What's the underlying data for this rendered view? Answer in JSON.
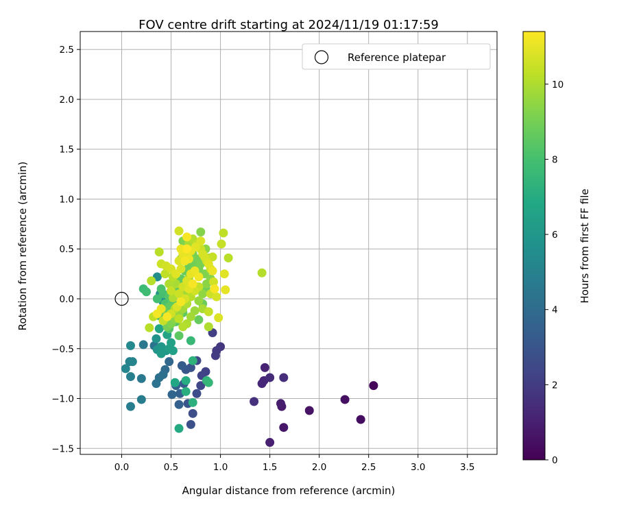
{
  "chart_data": {
    "type": "scatter",
    "title": "FOV centre drift starting at 2024/11/19 01:17:59",
    "xlabel": "Angular distance from reference (arcmin)",
    "ylabel": "Rotation from reference (arcmin)",
    "colorbar_label": "Hours from first FF file",
    "xlim": [
      -0.42,
      3.8
    ],
    "ylim": [
      -1.56,
      2.68
    ],
    "x_ticks": [
      0.0,
      0.5,
      1.0,
      1.5,
      2.0,
      2.5,
      3.0,
      3.5
    ],
    "x_tick_labels": [
      "0.0",
      "0.5",
      "1.0",
      "1.5",
      "2.0",
      "2.5",
      "3.0",
      "3.5"
    ],
    "y_ticks": [
      -1.5,
      -1.0,
      -0.5,
      0.0,
      0.5,
      1.0,
      1.5,
      2.0,
      2.5
    ],
    "y_tick_labels": [
      "−1.5",
      "−1.0",
      "−0.5",
      "0.0",
      "0.5",
      "1.0",
      "1.5",
      "2.0",
      "2.5"
    ],
    "colorbar_range": [
      0,
      11.4
    ],
    "colorbar_ticks": [
      0,
      2,
      4,
      6,
      8,
      10
    ],
    "colorbar_tick_labels": [
      "0",
      "2",
      "4",
      "6",
      "8",
      "10"
    ],
    "colormap": "viridis",
    "grid": true,
    "legend": {
      "position": "top-right",
      "entries": [
        "Reference platepar"
      ]
    },
    "reference_point": {
      "x": 0.0,
      "y": 0.0
    },
    "points": [
      [
        2.55,
        -0.87,
        0.2
      ],
      [
        2.42,
        -1.21,
        0.4
      ],
      [
        2.26,
        -1.01,
        0.5
      ],
      [
        1.9,
        -1.12,
        0.6
      ],
      [
        1.64,
        -1.29,
        0.7
      ],
      [
        1.62,
        -1.08,
        0.8
      ],
      [
        1.61,
        -1.05,
        0.9
      ],
      [
        1.5,
        -1.44,
        1.0
      ],
      [
        1.45,
        -0.69,
        1.1
      ],
      [
        1.44,
        -0.82,
        1.2
      ],
      [
        1.42,
        -0.85,
        1.3
      ],
      [
        1.5,
        -0.79,
        1.4
      ],
      [
        1.64,
        -0.79,
        1.5
      ],
      [
        1.34,
        -1.03,
        1.6
      ],
      [
        1.0,
        -0.48,
        1.8
      ],
      [
        0.96,
        -0.52,
        1.9
      ],
      [
        0.95,
        -0.57,
        2.0
      ],
      [
        0.92,
        -0.34,
        2.1
      ],
      [
        0.85,
        -0.73,
        2.2
      ],
      [
        0.81,
        -0.77,
        2.3
      ],
      [
        0.8,
        -0.87,
        2.4
      ],
      [
        0.76,
        -0.62,
        2.5
      ],
      [
        0.76,
        -0.95,
        2.6
      ],
      [
        0.72,
        -1.15,
        2.7
      ],
      [
        0.7,
        -1.26,
        2.8
      ],
      [
        0.7,
        -0.69,
        2.9
      ],
      [
        0.67,
        -1.05,
        3.0
      ],
      [
        0.65,
        -0.71,
        3.1
      ],
      [
        0.63,
        -0.85,
        3.2
      ],
      [
        0.61,
        -0.67,
        3.3
      ],
      [
        0.59,
        -0.95,
        3.4
      ],
      [
        0.58,
        -1.06,
        3.5
      ],
      [
        0.55,
        -0.87,
        3.6
      ],
      [
        0.51,
        -0.96,
        3.7
      ],
      [
        0.48,
        -0.63,
        3.8
      ],
      [
        0.44,
        -0.71,
        3.9
      ],
      [
        0.42,
        -0.76,
        4.1
      ],
      [
        0.38,
        -0.79,
        4.2
      ],
      [
        0.35,
        -0.85,
        4.3
      ],
      [
        0.33,
        -0.47,
        4.4
      ],
      [
        0.22,
        -0.46,
        4.5
      ],
      [
        0.2,
        -0.8,
        4.6
      ],
      [
        0.2,
        -1.01,
        4.7
      ],
      [
        0.09,
        -1.08,
        4.8
      ],
      [
        0.09,
        -0.78,
        4.9
      ],
      [
        0.08,
        -0.63,
        5.0
      ],
      [
        0.11,
        -0.63,
        5.1
      ],
      [
        0.04,
        -0.7,
        5.2
      ],
      [
        0.09,
        -0.47,
        5.3
      ],
      [
        0.36,
        0.22,
        5.5
      ],
      [
        0.39,
        0.05,
        5.6
      ],
      [
        0.42,
        -0.03,
        5.7
      ],
      [
        0.35,
        -0.4,
        5.8
      ],
      [
        0.36,
        -0.51,
        5.9
      ],
      [
        0.4,
        -0.48,
        6.0
      ],
      [
        0.45,
        -0.52,
        6.1
      ],
      [
        0.4,
        -0.55,
        6.2
      ],
      [
        0.48,
        -0.5,
        6.3
      ],
      [
        0.52,
        -0.52,
        6.4
      ],
      [
        0.5,
        -0.44,
        6.5
      ],
      [
        0.46,
        -0.36,
        6.6
      ],
      [
        0.38,
        -0.3,
        6.7
      ],
      [
        0.54,
        -0.84,
        6.8
      ],
      [
        0.58,
        -1.3,
        6.9
      ],
      [
        0.65,
        -0.82,
        7.0
      ],
      [
        0.65,
        -0.93,
        7.1
      ],
      [
        0.72,
        -1.04,
        7.2
      ],
      [
        0.72,
        -0.62,
        7.3
      ],
      [
        0.86,
        -0.82,
        7.4
      ],
      [
        0.88,
        -0.84,
        7.5
      ],
      [
        0.7,
        -0.42,
        7.6
      ],
      [
        0.22,
        0.1,
        7.7
      ],
      [
        0.25,
        0.07,
        7.8
      ],
      [
        0.36,
        0.0,
        7.9
      ],
      [
        0.42,
        0.05,
        8.0
      ],
      [
        0.45,
        -0.1,
        8.1
      ],
      [
        0.38,
        -0.17,
        8.2
      ],
      [
        0.48,
        -0.3,
        8.3
      ],
      [
        0.55,
        -0.23,
        8.4
      ],
      [
        0.58,
        -0.37,
        8.5
      ],
      [
        0.62,
        -0.14,
        8.6
      ],
      [
        0.78,
        -0.21,
        8.7
      ],
      [
        0.82,
        -0.05,
        8.8
      ],
      [
        0.85,
        0.11,
        8.9
      ],
      [
        0.78,
        0.3,
        9.0
      ],
      [
        0.72,
        0.45,
        9.1
      ],
      [
        0.62,
        0.58,
        9.2
      ],
      [
        0.8,
        0.67,
        9.3
      ],
      [
        0.85,
        0.5,
        9.4
      ],
      [
        0.88,
        0.41,
        9.5
      ],
      [
        0.76,
        0.12,
        9.6
      ],
      [
        0.68,
        0.21,
        9.7
      ],
      [
        0.65,
        0.05,
        9.8
      ],
      [
        0.55,
        0.15,
        9.9
      ],
      [
        0.52,
        0.01,
        10.0
      ],
      [
        0.54,
        -0.1,
        10.1
      ],
      [
        0.28,
        -0.29,
        10.2
      ],
      [
        0.32,
        -0.18,
        10.3
      ],
      [
        0.88,
        -0.13,
        10.4
      ],
      [
        0.9,
        0.05,
        10.5
      ],
      [
        0.93,
        0.17,
        10.6
      ],
      [
        0.96,
        0.02,
        10.7
      ],
      [
        0.98,
        -0.19,
        10.8
      ],
      [
        1.04,
        0.25,
        10.9
      ],
      [
        1.05,
        0.09,
        11.0
      ],
      [
        1.08,
        0.41,
        10.2
      ],
      [
        1.03,
        0.66,
        10.3
      ],
      [
        1.01,
        0.55,
        10.4
      ],
      [
        1.42,
        0.26,
        10.1
      ],
      [
        0.88,
        -0.28,
        10.0
      ],
      [
        0.82,
        -0.1,
        9.9
      ],
      [
        0.58,
        0.68,
        10.6
      ],
      [
        0.6,
        0.5,
        11.1
      ],
      [
        0.66,
        0.62,
        11.3
      ],
      [
        0.64,
        0.38,
        11.2
      ],
      [
        0.68,
        0.4,
        11.1
      ],
      [
        0.7,
        0.48,
        11.0
      ],
      [
        0.75,
        0.52,
        10.9
      ],
      [
        0.8,
        0.58,
        10.8
      ],
      [
        0.82,
        0.45,
        10.7
      ],
      [
        0.86,
        0.38,
        10.6
      ],
      [
        0.9,
        0.3,
        10.5
      ],
      [
        0.92,
        0.42,
        10.4
      ],
      [
        0.6,
        0.3,
        10.8
      ],
      [
        0.55,
        0.25,
        10.9
      ],
      [
        0.5,
        0.3,
        10.7
      ],
      [
        0.45,
        0.33,
        10.6
      ],
      [
        0.4,
        0.35,
        10.5
      ],
      [
        0.44,
        0.25,
        10.3
      ],
      [
        0.38,
        0.47,
        10.2
      ],
      [
        0.3,
        0.18,
        10.1
      ],
      [
        0.48,
        0.15,
        10.0
      ],
      [
        0.5,
        0.08,
        10.4
      ],
      [
        0.58,
        0.05,
        10.5
      ],
      [
        0.62,
        0.12,
        10.6
      ],
      [
        0.66,
        0.18,
        10.8
      ],
      [
        0.7,
        0.25,
        11.0
      ],
      [
        0.74,
        0.28,
        11.1
      ],
      [
        0.78,
        0.22,
        11.2
      ],
      [
        0.72,
        0.15,
        11.3
      ],
      [
        0.68,
        0.1,
        10.9
      ],
      [
        0.64,
        0.0,
        10.7
      ],
      [
        0.6,
        -0.03,
        11.2
      ],
      [
        0.56,
        -0.08,
        10.8
      ],
      [
        0.5,
        -0.15,
        10.6
      ],
      [
        0.46,
        -0.18,
        11.3
      ],
      [
        0.42,
        -0.22,
        10.4
      ],
      [
        0.4,
        -0.1,
        11.1
      ],
      [
        0.36,
        -0.15,
        11.2
      ],
      [
        0.52,
        0.22,
        10.2
      ],
      [
        0.58,
        -0.2,
        10.3
      ],
      [
        0.62,
        -0.28,
        10.1
      ],
      [
        0.66,
        -0.25,
        10.0
      ],
      [
        0.7,
        -0.18,
        9.8
      ],
      [
        0.74,
        -0.12,
        9.7
      ],
      [
        0.78,
        -0.02,
        9.6
      ],
      [
        0.82,
        0.05,
        9.5
      ],
      [
        0.86,
        0.15,
        9.4
      ],
      [
        0.9,
        0.2,
        9.3
      ],
      [
        0.84,
        0.25,
        9.2
      ],
      [
        0.8,
        0.35,
        9.1
      ],
      [
        0.76,
        0.4,
        9.0
      ],
      [
        0.72,
        0.35,
        8.9
      ],
      [
        0.68,
        0.32,
        8.8
      ],
      [
        0.64,
        0.28,
        8.7
      ],
      [
        0.6,
        0.2,
        8.6
      ],
      [
        0.56,
        0.1,
        8.5
      ],
      [
        0.52,
        -0.05,
        8.4
      ],
      [
        0.48,
        0.02,
        8.3
      ],
      [
        0.44,
        -0.05,
        8.2
      ],
      [
        0.4,
        0.1,
        8.1
      ],
      [
        0.6,
        0.4,
        9.5
      ],
      [
        0.64,
        0.45,
        9.7
      ],
      [
        0.68,
        0.55,
        9.9
      ],
      [
        0.72,
        0.6,
        10.1
      ],
      [
        0.76,
        0.55,
        10.3
      ],
      [
        0.8,
        0.5,
        10.5
      ],
      [
        0.84,
        0.42,
        10.7
      ],
      [
        0.88,
        0.35,
        10.9
      ],
      [
        0.92,
        0.28,
        11.1
      ],
      [
        0.94,
        0.1,
        11.3
      ],
      [
        0.66,
        0.5,
        11.4
      ],
      [
        0.62,
        0.45,
        11.0
      ],
      [
        0.58,
        0.38,
        10.8
      ],
      [
        0.74,
        0.08,
        10.6
      ],
      [
        0.78,
        0.12,
        10.4
      ],
      [
        0.7,
        0.02,
        10.2
      ],
      [
        0.66,
        -0.05,
        10.0
      ],
      [
        0.62,
        -0.1,
        9.8
      ],
      [
        0.58,
        -0.15,
        9.6
      ],
      [
        0.54,
        -0.2,
        9.4
      ],
      [
        0.5,
        -0.25,
        9.2
      ],
      [
        0.46,
        -0.28,
        9.0
      ],
      [
        0.42,
        -0.12,
        8.8
      ],
      [
        0.48,
        -0.08,
        8.6
      ]
    ]
  }
}
